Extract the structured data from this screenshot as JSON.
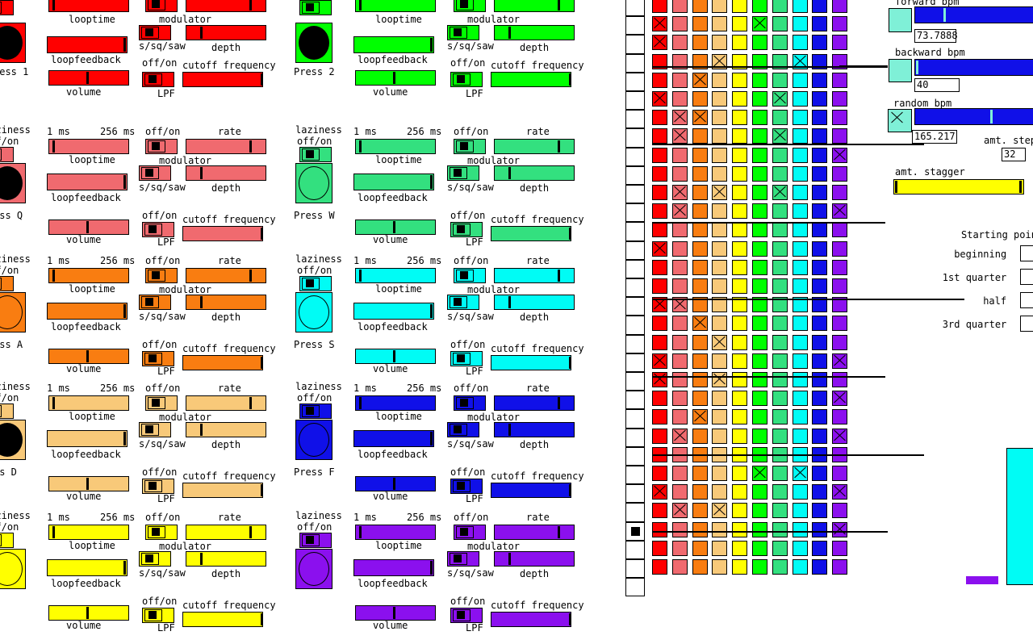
{
  "labels": {
    "offon": "off/on",
    "laziness": "laziness",
    "looptime": "looptime",
    "ms_min": "1 ms",
    "ms_max": "256 ms",
    "modulator": "modulator",
    "rate": "rate",
    "waveform": "s/sq/saw",
    "depth": "depth",
    "loopfeedback": "loopfeedback",
    "lpf": "LPF",
    "cutoff": "cutoff frequency",
    "volume": "volume"
  },
  "voices": [
    {
      "press": "ress 1",
      "color": "#ff0000"
    },
    {
      "press": "Press 2",
      "color": "#00ff00"
    },
    {
      "press": "ess Q",
      "color": "#f06a6f"
    },
    {
      "press": "Press W",
      "color": "#33e07f"
    },
    {
      "press": "ess A",
      "color": "#f97d11"
    },
    {
      "press": "Press S",
      "color": "#00fcf5"
    },
    {
      "press": "ss D",
      "color": "#f8c979"
    },
    {
      "press": "Press F",
      "color": "#1010e8"
    },
    {
      "press": "",
      "color": "#ffff00"
    },
    {
      "press": "",
      "color": "#8b10ee"
    }
  ],
  "right": {
    "forward_bpm_label": "forward bpm",
    "forward_bpm_value": "73.7888",
    "backward_bpm_label": "backward bpm",
    "backward_bpm_value": "40",
    "random_bpm_label": "random bpm",
    "random_bpm_value": "165.217",
    "amt_step_label": "amt. step",
    "amt_step_value": "32",
    "amt_stagger_label": "amt. stagger",
    "stagger_color": "#ffff00",
    "bpm_color": "#1010e8",
    "starting_point_label": "Starting point",
    "starting_options": [
      "beginning",
      "1st quarter",
      "half",
      "3rd quarter"
    ]
  },
  "grid": {
    "columns": [
      "#ff0000",
      "#f06a6f",
      "#f97d11",
      "#f8c979",
      "#ffff00",
      "#00ff00",
      "#33e07f",
      "#00fcf5",
      "#1010e8",
      "#8b10ee"
    ],
    "rows": 30
  }
}
